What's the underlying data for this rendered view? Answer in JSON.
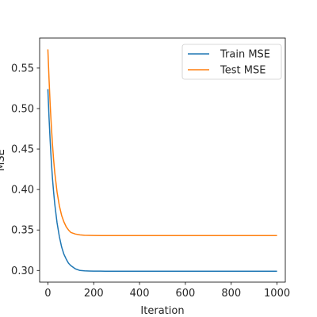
{
  "chart_data": {
    "type": "line",
    "title": "",
    "xlabel": "Iteration",
    "ylabel": "MSE",
    "xlim": [
      -36,
      1036
    ],
    "ylim": [
      0.2856,
      0.5871
    ],
    "xticks": [
      0,
      200,
      400,
      600,
      800,
      1000
    ],
    "yticks": [
      0.3,
      0.35,
      0.4,
      0.45,
      0.5,
      0.55
    ],
    "xtick_labels": [
      "0",
      "200",
      "400",
      "600",
      "800",
      "1000"
    ],
    "ytick_labels": [
      "0.30",
      "0.35",
      "0.40",
      "0.45",
      "0.50",
      "0.55"
    ],
    "grid": false,
    "legend_position": "top-right",
    "x": [
      0,
      5,
      10,
      15,
      20,
      25,
      30,
      40,
      50,
      60,
      70,
      80,
      90,
      100,
      120,
      140,
      160,
      180,
      200,
      250,
      300,
      400,
      500,
      600,
      700,
      800,
      900,
      1000
    ],
    "series": [
      {
        "name": "Train MSE",
        "color": "#1f77b4",
        "values": [
          0.524,
          0.489,
          0.46,
          0.435,
          0.414,
          0.397,
          0.382,
          0.359,
          0.342,
          0.329,
          0.32,
          0.314,
          0.309,
          0.306,
          0.302,
          0.3,
          0.2995,
          0.2993,
          0.2992,
          0.2991,
          0.2991,
          0.2991,
          0.2991,
          0.2991,
          0.2991,
          0.2991,
          0.2991,
          0.2991
        ]
      },
      {
        "name": "Test MSE",
        "color": "#ff7f0e",
        "values": [
          0.573,
          0.537,
          0.505,
          0.479,
          0.456,
          0.437,
          0.421,
          0.397,
          0.38,
          0.368,
          0.36,
          0.354,
          0.35,
          0.347,
          0.345,
          0.344,
          0.3435,
          0.3433,
          0.3432,
          0.3431,
          0.3431,
          0.3431,
          0.3431,
          0.3431,
          0.3431,
          0.3431,
          0.3431,
          0.3431
        ]
      }
    ]
  }
}
